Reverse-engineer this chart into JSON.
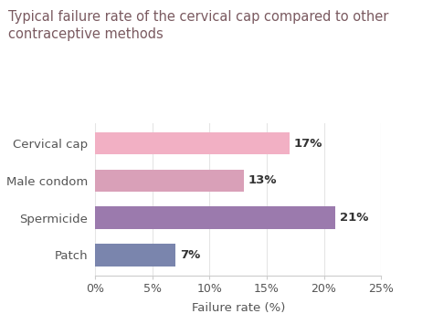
{
  "title": "Typical failure rate of the cervical cap compared to other\ncontraceptive methods",
  "categories": [
    "Cervical cap",
    "Male condom",
    "Spermicide",
    "Patch"
  ],
  "values": [
    17,
    13,
    21,
    7
  ],
  "bar_colors": [
    "#f2b0c4",
    "#d9a0b8",
    "#9b7aad",
    "#7a85ad"
  ],
  "xlabel": "Failure rate (%)",
  "xlim": [
    0,
    25
  ],
  "xticks": [
    0,
    5,
    10,
    15,
    20,
    25
  ],
  "xtick_labels": [
    "0%",
    "5%",
    "10%",
    "15%",
    "20%",
    "25%"
  ],
  "title_color": "#7a5a60",
  "label_color": "#555555",
  "value_label_color": "#333333",
  "background_color": "#ffffff",
  "title_fontsize": 10.5,
  "axis_label_fontsize": 9.5,
  "tick_label_fontsize": 9,
  "value_fontsize": 9.5,
  "bar_height": 0.6
}
